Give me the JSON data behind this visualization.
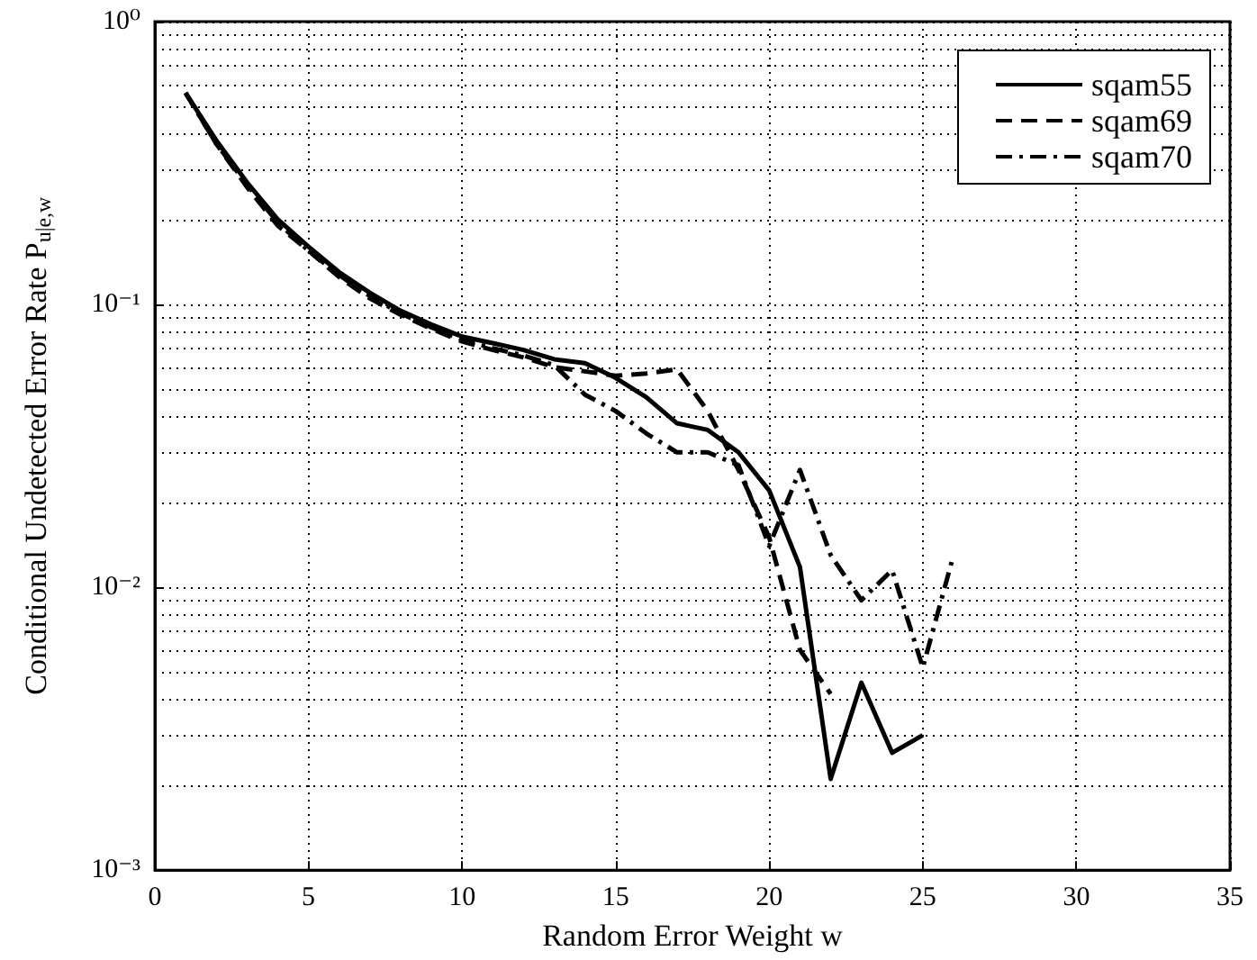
{
  "chart_data": {
    "type": "line",
    "xlabel": "Random Error Weight w",
    "ylabel": "Conditional Undetected Error Rate P$_{u|e,w}$",
    "x": [
      1,
      2,
      3,
      4,
      5,
      6,
      7,
      8,
      9,
      10,
      11,
      12,
      13,
      14,
      15,
      16,
      17,
      18,
      19,
      20,
      21,
      22,
      23,
      24,
      25,
      26
    ],
    "series": [
      {
        "name": "sqam55",
        "color": "#000000",
        "line_style": "solid",
        "values": [
          0.56,
          0.38,
          0.27,
          0.2,
          0.16,
          0.13,
          0.11,
          0.095,
          0.085,
          0.077,
          0.073,
          0.069,
          0.064,
          0.062,
          0.055,
          0.047,
          0.038,
          0.036,
          0.03,
          0.022,
          0.0118,
          0.0021,
          0.0046,
          0.0026,
          0.003,
          null
        ]
      },
      {
        "name": "sqam69",
        "color": "#000000",
        "line_style": "dashed",
        "values": [
          0.56,
          0.37,
          0.26,
          0.19,
          0.155,
          0.125,
          0.105,
          0.092,
          0.082,
          0.074,
          0.069,
          0.065,
          0.06,
          0.058,
          0.056,
          0.057,
          0.059,
          0.042,
          0.026,
          0.015,
          0.006,
          0.0042,
          null,
          null,
          null,
          null
        ]
      },
      {
        "name": "sqam70",
        "color": "#000000",
        "line_style": "dashed",
        "values": [
          0.56,
          0.37,
          0.265,
          0.195,
          0.155,
          0.127,
          0.107,
          0.093,
          0.083,
          0.075,
          0.07,
          0.066,
          0.061,
          0.048,
          0.042,
          0.035,
          0.03,
          0.03,
          0.027,
          0.014,
          0.026,
          0.013,
          0.009,
          0.0115,
          0.0052,
          0.013
        ]
      }
    ],
    "xlim": [
      0,
      35
    ],
    "xticks": [
      0,
      5,
      10,
      15,
      20,
      25,
      30,
      35
    ],
    "ylim": [
      0.001,
      1
    ],
    "yticks": [
      {
        "value": 0.001,
        "label": "10⁻³"
      },
      {
        "value": 0.01,
        "label": "10⁻²"
      },
      {
        "value": 0.1,
        "label": "10⁻¹"
      },
      {
        "value": 1,
        "label": "10⁰"
      }
    ],
    "log": "y",
    "grid": true,
    "legend": "top right",
    "marker": "none"
  }
}
